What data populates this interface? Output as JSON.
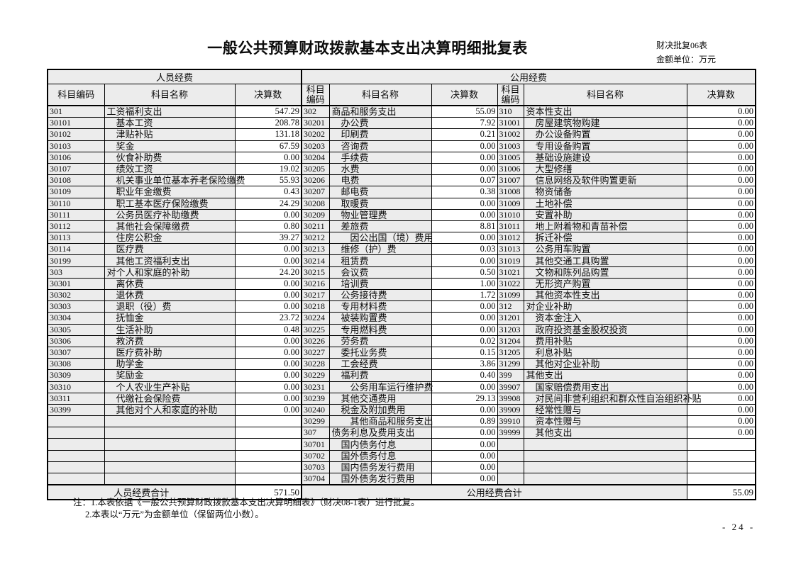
{
  "page": {
    "title": "一般公共预算财政拨款基本支出决算明细批复表",
    "form_code": "财决批复06表",
    "unit_label": "金额单位：万元",
    "note1": "注：1.本表依据《一般公共预算财政拨款基本支出决算明细表》（财决08-1表）进行批复。",
    "note2": "2.本表以“万元”为金额单位（保留两位小数）。",
    "page_number": "- 24 -"
  },
  "table": {
    "group_headers": [
      "人员经费",
      "公用经费"
    ],
    "column_headers": [
      "科目编码",
      "科目名称",
      "决算数",
      "科目编码",
      "科目名称",
      "决算数",
      "科目编码",
      "科目名称",
      "决算数"
    ],
    "totals": {
      "left_label": "人员经费合计",
      "left_value": "571.50",
      "right_label": "公用经费合计",
      "right_value": "55.09"
    },
    "rows": [
      [
        [
          "301",
          "工资福利支出",
          0,
          "547.29"
        ],
        [
          "302",
          "商品和服务支出",
          0,
          "55.09"
        ],
        [
          "310",
          "资本性支出",
          0,
          "0.00"
        ]
      ],
      [
        [
          "30101",
          "基本工资",
          1,
          "208.78"
        ],
        [
          "30201",
          "办公费",
          1,
          "7.92"
        ],
        [
          "31001",
          "房屋建筑物购建",
          1,
          "0.00"
        ]
      ],
      [
        [
          "30102",
          "津贴补贴",
          1,
          "131.18"
        ],
        [
          "30202",
          "印刷费",
          1,
          "0.21"
        ],
        [
          "31002",
          "办公设备购置",
          1,
          "0.00"
        ]
      ],
      [
        [
          "30103",
          "奖金",
          1,
          "67.59"
        ],
        [
          "30203",
          "咨询费",
          1,
          "0.00"
        ],
        [
          "31003",
          "专用设备购置",
          1,
          "0.00"
        ]
      ],
      [
        [
          "30106",
          "伙食补助费",
          1,
          "0.00"
        ],
        [
          "30204",
          "手续费",
          1,
          "0.00"
        ],
        [
          "31005",
          "基础设施建设",
          1,
          "0.00"
        ]
      ],
      [
        [
          "30107",
          "绩效工资",
          1,
          "19.02"
        ],
        [
          "30205",
          "水费",
          1,
          "0.00"
        ],
        [
          "31006",
          "大型修缮",
          1,
          "0.00"
        ]
      ],
      [
        [
          "30108",
          "机关事业单位基本养老保险缴费",
          1,
          "55.93"
        ],
        [
          "30206",
          "电费",
          1,
          "0.07"
        ],
        [
          "31007",
          "信息网络及软件购置更新",
          1,
          "0.00"
        ]
      ],
      [
        [
          "30109",
          "职业年金缴费",
          1,
          "0.43"
        ],
        [
          "30207",
          "邮电费",
          1,
          "0.38"
        ],
        [
          "31008",
          "物资储备",
          1,
          "0.00"
        ]
      ],
      [
        [
          "30110",
          "职工基本医疗保险缴费",
          1,
          "24.29"
        ],
        [
          "30208",
          "取暖费",
          1,
          "0.00"
        ],
        [
          "31009",
          "土地补偿",
          1,
          "0.00"
        ]
      ],
      [
        [
          "30111",
          "公务员医疗补助缴费",
          1,
          "0.00"
        ],
        [
          "30209",
          "物业管理费",
          1,
          "0.00"
        ],
        [
          "31010",
          "安置补助",
          1,
          "0.00"
        ]
      ],
      [
        [
          "30112",
          "其他社会保障缴费",
          1,
          "0.80"
        ],
        [
          "30211",
          "差旅费",
          1,
          "8.81"
        ],
        [
          "31011",
          "地上附着物和青苗补偿",
          1,
          "0.00"
        ]
      ],
      [
        [
          "30113",
          "住房公积金",
          1,
          "39.27"
        ],
        [
          "30212",
          "因公出国（境）费用",
          2,
          "0.00"
        ],
        [
          "31012",
          "拆迁补偿",
          1,
          "0.00"
        ]
      ],
      [
        [
          "30114",
          "医疗费",
          1,
          "0.00"
        ],
        [
          "30213",
          "维修（护）费",
          1,
          "0.03"
        ],
        [
          "31013",
          "公务用车购置",
          1,
          "0.00"
        ]
      ],
      [
        [
          "30199",
          "其他工资福利支出",
          1,
          "0.00"
        ],
        [
          "30214",
          "租赁费",
          1,
          "0.00"
        ],
        [
          "31019",
          "其他交通工具购置",
          1,
          "0.00"
        ]
      ],
      [
        [
          "303",
          "对个人和家庭的补助",
          0,
          "24.20"
        ],
        [
          "30215",
          "会议费",
          1,
          "0.50"
        ],
        [
          "31021",
          "文物和陈列品购置",
          1,
          "0.00"
        ]
      ],
      [
        [
          "30301",
          "离休费",
          1,
          "0.00"
        ],
        [
          "30216",
          "培训费",
          1,
          "1.00"
        ],
        [
          "31022",
          "无形资产购置",
          1,
          "0.00"
        ]
      ],
      [
        [
          "30302",
          "退休费",
          1,
          "0.00"
        ],
        [
          "30217",
          "公务接待费",
          1,
          "1.72"
        ],
        [
          "31099",
          "其他资本性支出",
          1,
          "0.00"
        ]
      ],
      [
        [
          "30303",
          "退职（役）费",
          1,
          "0.00"
        ],
        [
          "30218",
          "专用材料费",
          1,
          "0.00"
        ],
        [
          "312",
          "对企业补助",
          0,
          "0.00"
        ]
      ],
      [
        [
          "30304",
          "抚恤金",
          1,
          "23.72"
        ],
        [
          "30224",
          "被装购置费",
          1,
          "0.00"
        ],
        [
          "31201",
          "资本金注入",
          1,
          "0.00"
        ]
      ],
      [
        [
          "30305",
          "生活补助",
          1,
          "0.48"
        ],
        [
          "30225",
          "专用燃料费",
          1,
          "0.00"
        ],
        [
          "31203",
          "政府投资基金股权投资",
          1,
          "0.00"
        ]
      ],
      [
        [
          "30306",
          "救济费",
          1,
          "0.00"
        ],
        [
          "30226",
          "劳务费",
          1,
          "0.02"
        ],
        [
          "31204",
          "费用补贴",
          1,
          "0.00"
        ]
      ],
      [
        [
          "30307",
          "医疗费补助",
          1,
          "0.00"
        ],
        [
          "30227",
          "委托业务费",
          1,
          "0.15"
        ],
        [
          "31205",
          "利息补贴",
          1,
          "0.00"
        ]
      ],
      [
        [
          "30308",
          "助学金",
          1,
          "0.00"
        ],
        [
          "30228",
          "工会经费",
          1,
          "3.86"
        ],
        [
          "31299",
          "其他对企业补助",
          1,
          "0.00"
        ]
      ],
      [
        [
          "30309",
          "奖励金",
          1,
          "0.00"
        ],
        [
          "30229",
          "福利费",
          1,
          "0.40"
        ],
        [
          "399",
          "其他支出",
          0,
          "0.00"
        ]
      ],
      [
        [
          "30310",
          "个人农业生产补贴",
          1,
          "0.00"
        ],
        [
          "30231",
          "公务用车运行维护费",
          2,
          "0.00"
        ],
        [
          "39907",
          "国家赔偿费用支出",
          1,
          "0.00"
        ]
      ],
      [
        [
          "30311",
          "代缴社会保险费",
          1,
          "0.00"
        ],
        [
          "30239",
          "其他交通费用",
          1,
          "29.13"
        ],
        [
          "39908",
          "对民间非营利组织和群众性自治组织补贴",
          1,
          "0.00"
        ]
      ],
      [
        [
          "30399",
          "其他对个人和家庭的补助",
          1,
          "0.00"
        ],
        [
          "30240",
          "税金及附加费用",
          1,
          "0.00"
        ],
        [
          "39909",
          "经常性赠与",
          1,
          "0.00"
        ]
      ],
      [
        [
          "",
          "",
          0,
          ""
        ],
        [
          "30299",
          "其他商品和服务支出",
          2,
          "0.89"
        ],
        [
          "39910",
          "资本性赠与",
          1,
          "0.00"
        ]
      ],
      [
        [
          "",
          "",
          0,
          ""
        ],
        [
          "307",
          "债务利息及费用支出",
          0,
          "0.00"
        ],
        [
          "39999",
          "其他支出",
          1,
          "0.00"
        ]
      ],
      [
        [
          "",
          "",
          0,
          ""
        ],
        [
          "30701",
          "国内债务付息",
          1,
          "0.00"
        ],
        [
          "",
          "",
          0,
          ""
        ]
      ],
      [
        [
          "",
          "",
          0,
          ""
        ],
        [
          "30702",
          "国外债务付息",
          1,
          "0.00"
        ],
        [
          "",
          "",
          0,
          ""
        ]
      ],
      [
        [
          "",
          "",
          0,
          ""
        ],
        [
          "30703",
          "国内债务发行费用",
          1,
          "0.00"
        ],
        [
          "",
          "",
          0,
          ""
        ]
      ],
      [
        [
          "",
          "",
          0,
          ""
        ],
        [
          "30704",
          "国外债务发行费用",
          1,
          "0.00"
        ],
        [
          "",
          "",
          0,
          ""
        ]
      ]
    ]
  }
}
